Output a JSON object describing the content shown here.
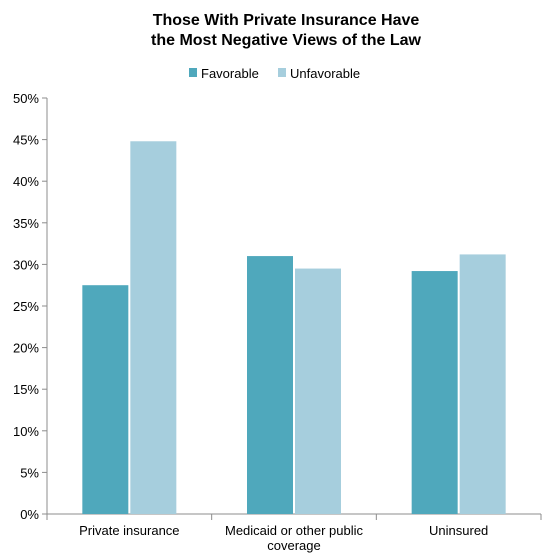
{
  "chart_data": {
    "type": "bar",
    "title": [
      "Those With Private Insurance Have",
      "the Most Negative Views of the Law"
    ],
    "categories": [
      [
        "Private insurance"
      ],
      [
        "Medicaid or other public",
        "coverage"
      ],
      [
        "Uninsured"
      ]
    ],
    "series": [
      {
        "name": "Favorable",
        "color": "#4fa8bc",
        "values": [
          27.5,
          31.0,
          29.2
        ]
      },
      {
        "name": "Unfavorable",
        "color": "#a6cedd",
        "values": [
          44.8,
          29.5,
          31.2
        ]
      }
    ],
    "ylim": [
      0,
      50
    ],
    "yticks": [
      0,
      5,
      10,
      15,
      20,
      25,
      30,
      35,
      40,
      45,
      50
    ],
    "ytick_labels": [
      "0%",
      "5%",
      "10%",
      "15%",
      "20%",
      "25%",
      "30%",
      "35%",
      "40%",
      "45%",
      "50%"
    ],
    "grid": false,
    "legend_position": "top"
  }
}
